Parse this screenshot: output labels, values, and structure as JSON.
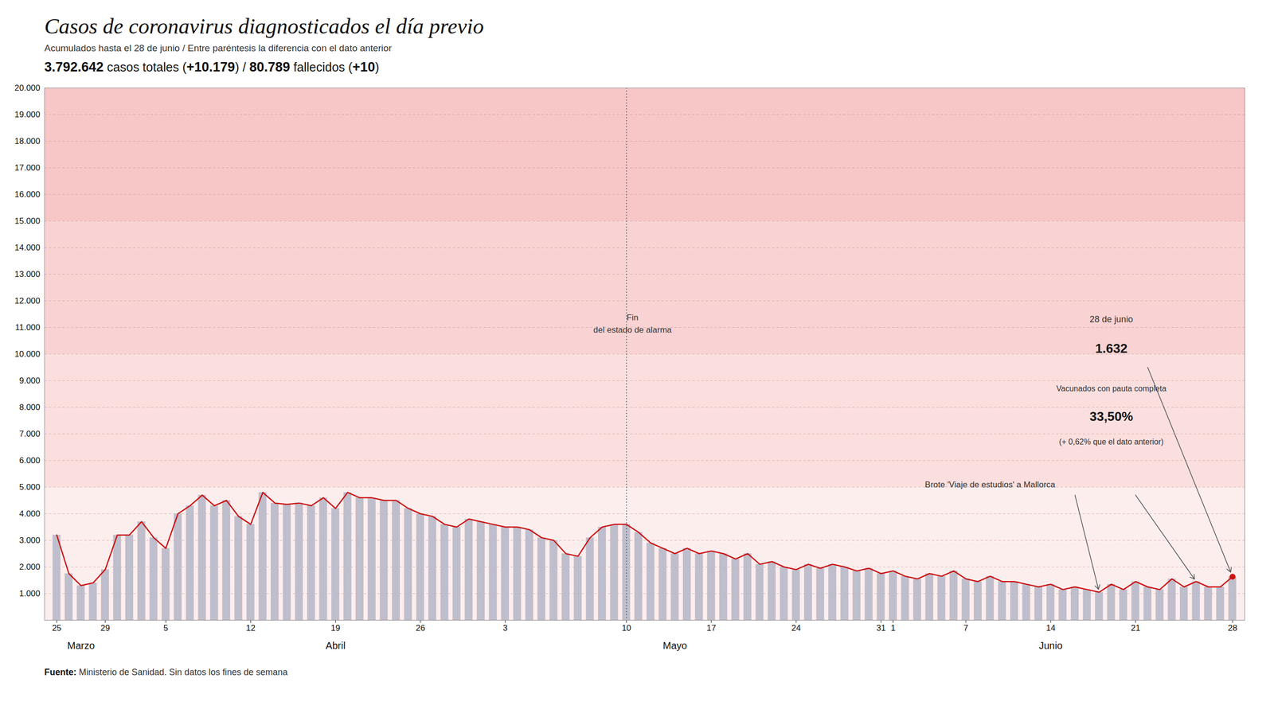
{
  "chart_data": {
    "type": "bar",
    "title": "Casos de coronavirus diagnosticados el día previo",
    "subtitle": "Acumulados hasta el 28 de junio / Entre paréntesis la diferencia con el dato anterior",
    "stats": [
      "3.792.642",
      " casos totales (",
      "+10.179",
      ") / ",
      "80.789",
      " fallecidos (",
      "+10",
      ")"
    ],
    "source": [
      "Fuente:",
      " Ministerio de Sanidad. Sin datos los fines de semana"
    ],
    "categories": [
      "25",
      null,
      null,
      null,
      "29",
      null,
      null,
      null,
      null,
      "5",
      null,
      null,
      null,
      null,
      null,
      null,
      "12",
      null,
      null,
      null,
      null,
      null,
      null,
      "19",
      null,
      null,
      null,
      null,
      null,
      null,
      "26",
      null,
      null,
      null,
      null,
      null,
      null,
      "3",
      null,
      null,
      null,
      null,
      null,
      null,
      null,
      null,
      null,
      "10",
      null,
      null,
      null,
      null,
      null,
      null,
      "17",
      null,
      null,
      null,
      null,
      null,
      null,
      "24",
      null,
      null,
      null,
      null,
      null,
      null,
      "31",
      "1",
      null,
      null,
      null,
      null,
      null,
      "7",
      null,
      null,
      null,
      null,
      null,
      null,
      "14",
      null,
      null,
      null,
      null,
      null,
      null,
      "21",
      null,
      null,
      null,
      null,
      null,
      null,
      null,
      "28"
    ],
    "series": [
      {
        "type": "bar",
        "color": "#b8b8c8",
        "values": [
          3200,
          1750,
          1300,
          1400,
          1900,
          3200,
          3200,
          3700,
          3100,
          2700,
          4000,
          4300,
          4700,
          4300,
          4500,
          3900,
          3600,
          4800,
          4400,
          4350,
          4400,
          4300,
          4600,
          4200,
          4800,
          4600,
          4600,
          4500,
          4500,
          4200,
          4000,
          3900,
          3600,
          3500,
          3800,
          3700,
          3600,
          3500,
          3500,
          3400,
          3100,
          3000,
          2500,
          2400,
          3100,
          3500,
          3600,
          3600,
          3300,
          2900,
          2700,
          2500,
          2700,
          2500,
          2600,
          2500,
          2300,
          2500,
          2100,
          2200,
          2000,
          1900,
          2100,
          1950,
          2100,
          2000,
          1850,
          1950,
          1750,
          1850,
          1650,
          1550,
          1750,
          1650,
          1850,
          1550,
          1450,
          1650,
          1450,
          1450,
          1350,
          1250,
          1350,
          1150,
          1250,
          1150,
          1050,
          1350,
          1150,
          1450,
          1250,
          1150,
          1550,
          1250,
          1450,
          1250,
          1250,
          1632
        ]
      },
      {
        "type": "line",
        "color": "#cc1111",
        "values": [
          3200,
          1750,
          1300,
          1400,
          1900,
          3200,
          3200,
          3700,
          3100,
          2700,
          4000,
          4300,
          4700,
          4300,
          4500,
          3900,
          3600,
          4800,
          4400,
          4350,
          4400,
          4300,
          4600,
          4200,
          4800,
          4600,
          4600,
          4500,
          4500,
          4200,
          4000,
          3900,
          3600,
          3500,
          3800,
          3700,
          3600,
          3500,
          3500,
          3400,
          3100,
          3000,
          2500,
          2400,
          3100,
          3500,
          3600,
          3600,
          3300,
          2900,
          2700,
          2500,
          2700,
          2500,
          2600,
          2500,
          2300,
          2500,
          2100,
          2200,
          2000,
          1900,
          2100,
          1950,
          2100,
          2000,
          1850,
          1950,
          1750,
          1850,
          1650,
          1550,
          1750,
          1650,
          1850,
          1550,
          1450,
          1650,
          1450,
          1450,
          1350,
          1250,
          1350,
          1150,
          1250,
          1150,
          1050,
          1350,
          1150,
          1450,
          1250,
          1150,
          1550,
          1250,
          1450,
          1250,
          1250,
          1632
        ]
      }
    ],
    "ylim": [
      0,
      20000
    ],
    "yticks": [
      {
        "value": 1000,
        "label": "1.000"
      },
      {
        "value": 2000,
        "label": "2.000"
      },
      {
        "value": 3000,
        "label": "3.000"
      },
      {
        "value": 4000,
        "label": "4.000"
      },
      {
        "value": 5000,
        "label": "5.000"
      },
      {
        "value": 6000,
        "label": "6.000"
      },
      {
        "value": 7000,
        "label": "7.000"
      },
      {
        "value": 8000,
        "label": "8.000"
      },
      {
        "value": 9000,
        "label": "9.000"
      },
      {
        "value": 10000,
        "label": "10.000"
      },
      {
        "value": 11000,
        "label": "11.000"
      },
      {
        "value": 12000,
        "label": "12.000"
      },
      {
        "value": 13000,
        "label": "13.000"
      },
      {
        "value": 14000,
        "label": "14.000"
      },
      {
        "value": 15000,
        "label": "15.000"
      },
      {
        "value": 16000,
        "label": "16.000"
      },
      {
        "value": 17000,
        "label": "17.000"
      },
      {
        "value": 18000,
        "label": "18.000"
      },
      {
        "value": 19000,
        "label": "19.000"
      },
      {
        "value": 20000,
        "label": "20.000"
      }
    ],
    "grid": true,
    "bands": [
      {
        "ymin": 15000,
        "ymax": 20000,
        "color": "#f09090"
      },
      {
        "ymin": 10000,
        "ymax": 15000,
        "color": "#f4a8a8"
      },
      {
        "ymin": 5000,
        "ymax": 10000,
        "color": "#f8c0c0"
      },
      {
        "ymin": 0,
        "ymax": 5000,
        "color": "#fcdede"
      }
    ],
    "month_labels": [
      {
        "label": "Marzo",
        "x": 2
      },
      {
        "label": "Abril",
        "x": 23
      },
      {
        "label": "Mayo",
        "x": 51
      },
      {
        "label": "Junio",
        "x": 82
      }
    ],
    "alarm": {
      "position": 47,
      "text": "Fin\ndel estado de alarma"
    },
    "last_label": {
      "date": "28 de junio",
      "value": 1632,
      "value_label": "1.632"
    },
    "vaccination": {
      "text": "Vacunados con pauta completa",
      "value_label": "33,50%",
      "change": "(+ 0,62% que el dato anterior)"
    },
    "outbreak": {
      "text": "Brote 'Viaje de estudios' a Mallorca",
      "targets": [
        86,
        94
      ]
    }
  }
}
